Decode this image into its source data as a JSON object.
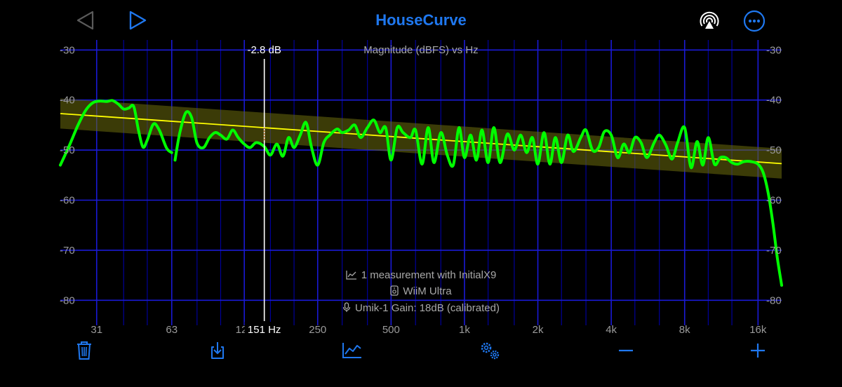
{
  "app": {
    "title": "HouseCurve"
  },
  "chart_data": {
    "type": "line",
    "title": "Magnitude (dBFS) vs Hz",
    "x_scale": "log",
    "xlim": [
      22,
      20000
    ],
    "ylim": [
      -85,
      -28
    ],
    "y_ticks": [
      -30,
      -40,
      -50,
      -60,
      -70,
      -80
    ],
    "y_tick_labels": [
      "-30",
      "-40",
      "-50",
      "-60",
      "-70",
      "-80"
    ],
    "x_ticks": [
      31,
      63,
      125,
      250,
      500,
      1000,
      2000,
      4000,
      8000,
      16000
    ],
    "x_tick_labels": [
      "31",
      "63",
      "125",
      "250",
      "500",
      "1k",
      "2k",
      "4k",
      "8k",
      "16k"
    ],
    "x_grid_minor": [
      40,
      50,
      80,
      100,
      160,
      200,
      315,
      400,
      630,
      800,
      1250,
      1600,
      2500,
      3150,
      5000,
      6300,
      10000,
      12500
    ],
    "grid": true,
    "colors": {
      "measurement": "#00ff00",
      "target": "#ffff00",
      "band": "#6b6b0c",
      "grid_major": "#1a1ad6",
      "grid_minor": "#00009a",
      "cursor": "#ffffff"
    },
    "target": {
      "x": [
        22,
        20000
      ],
      "y": [
        -42.7,
        -52.7
      ],
      "band_half_width": 3
    },
    "cursor": {
      "x": 151,
      "x_label": "151 Hz",
      "y_label": "-2.8 dB"
    },
    "series": [
      {
        "name": "measurement",
        "segments": [
          {
            "x": [
              22,
              24,
              26,
              28,
              30,
              32,
              34,
              36,
              38,
              40,
              42,
              44,
              46,
              48,
              50,
              53,
              56,
              60,
              63
            ],
            "y": [
              -53,
              -49,
              -45,
              -42,
              -40.5,
              -40.2,
              -40.3,
              -40.1,
              -40.8,
              -41.8,
              -41.6,
              -41.3,
              -46,
              -49.4,
              -48,
              -44.8,
              -46,
              -49.6,
              -50.5
            ]
          },
          {
            "x": [
              65,
              68,
              72,
              76,
              80,
              85,
              90,
              95,
              100,
              106,
              112,
              118,
              125,
              132,
              140,
              151,
              160,
              170,
              180,
              190,
              200,
              212,
              224,
              236,
              250,
              265,
              280,
              300,
              315,
              335,
              355,
              375,
              400,
              425,
              450,
              475,
              500,
              530,
              560,
              600,
              630,
              670,
              710,
              750,
              800,
              850,
              900,
              950,
              1000,
              1060,
              1120,
              1180,
              1250,
              1320,
              1400,
              1500,
              1600,
              1700,
              1800,
              1900,
              2000,
              2120,
              2240,
              2360,
              2500,
              2650,
              2800,
              3000,
              3150,
              3350,
              3550,
              3750,
              4000,
              4250,
              4500,
              4750,
              5000,
              5300,
              5600,
              6000,
              6300,
              6700,
              7100,
              7500,
              8000,
              8500,
              9000,
              9500,
              10000,
              10600,
              11200,
              11800,
              12500,
              13200,
              14000,
              15000,
              16000,
              16800,
              17600,
              18400,
              19200,
              20000
            ],
            "y": [
              -52,
              -46.5,
              -42.5,
              -43.5,
              -48.6,
              -49.5,
              -47.5,
              -46.5,
              -47,
              -47.8,
              -46,
              -47.5,
              -48.8,
              -49.5,
              -48.5,
              -49.3,
              -51,
              -48.8,
              -51.2,
              -47.5,
              -49.5,
              -47,
              -44.5,
              -49.5,
              -53,
              -48.5,
              -47,
              -45.8,
              -46.5,
              -46,
              -45,
              -47.5,
              -45.5,
              -44,
              -46.5,
              -45.5,
              -52,
              -45.5,
              -46.5,
              -47.5,
              -46,
              -52.8,
              -45.5,
              -52.5,
              -46.5,
              -51,
              -53,
              -45.5,
              -51.5,
              -47,
              -52,
              -46,
              -52.5,
              -45.5,
              -52.5,
              -46.8,
              -50,
              -47,
              -50.5,
              -47.5,
              -52.8,
              -46.5,
              -52.8,
              -47.5,
              -52.5,
              -47,
              -50.3,
              -47.5,
              -46,
              -50,
              -49.5,
              -46.3,
              -47,
              -51.5,
              -48.8,
              -50.5,
              -47.5,
              -48.5,
              -51.5,
              -48.5,
              -47,
              -49,
              -51.8,
              -48.4,
              -45.5,
              -53.5,
              -48.3,
              -53,
              -47.5,
              -52.8,
              -51.5,
              -51.5,
              -52.5,
              -52.8,
              -52.3,
              -52.3,
              -52.8,
              -54.5,
              -58.5,
              -64.5,
              -71.5,
              -77
            ]
          }
        ]
      }
    ]
  },
  "info": {
    "measurements": "1 measurement with InitialX9",
    "device": "WiiM Ultra",
    "microphone": "Umik-1  Gain: 18dB (calibrated)"
  }
}
